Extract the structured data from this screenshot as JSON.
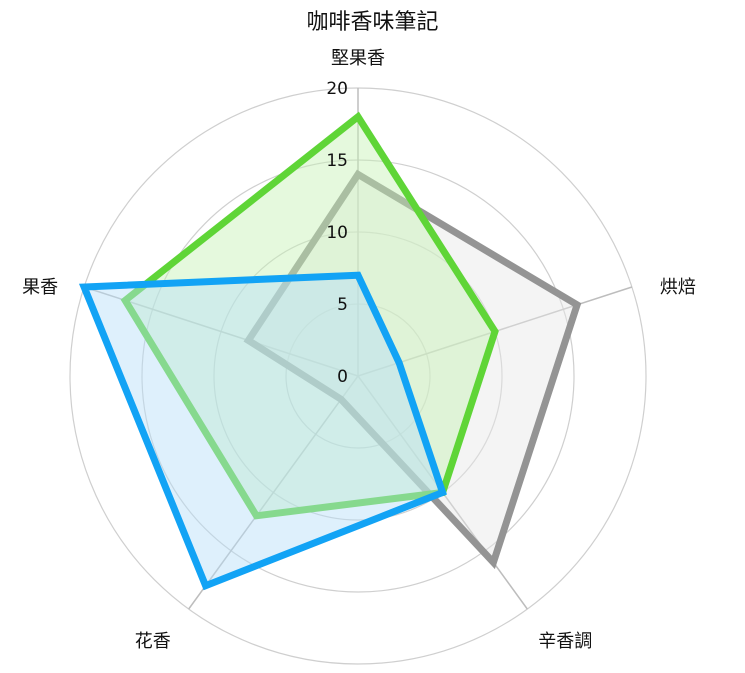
{
  "chart_data": {
    "type": "radar",
    "title": "咖啡香味筆記",
    "axes": [
      "堅果香",
      "烘焙",
      "辛香調",
      "花香",
      "果香"
    ],
    "r_ticks": [
      0,
      5,
      10,
      15,
      20
    ],
    "r_range": [
      0,
      20
    ],
    "grid": true,
    "legend": "none",
    "series": [
      {
        "values": [
          14,
          16,
          16,
          2,
          8
        ],
        "color": "#949494",
        "fill": "#e6e6e6"
      },
      {
        "values": [
          18,
          10,
          10,
          12,
          17
        ],
        "color": "#5fd537",
        "fill": "#c6f2b4"
      },
      {
        "values": [
          7,
          3,
          10,
          18,
          20
        ],
        "color": "#12a3f5",
        "fill": "#b5def8"
      }
    ]
  }
}
